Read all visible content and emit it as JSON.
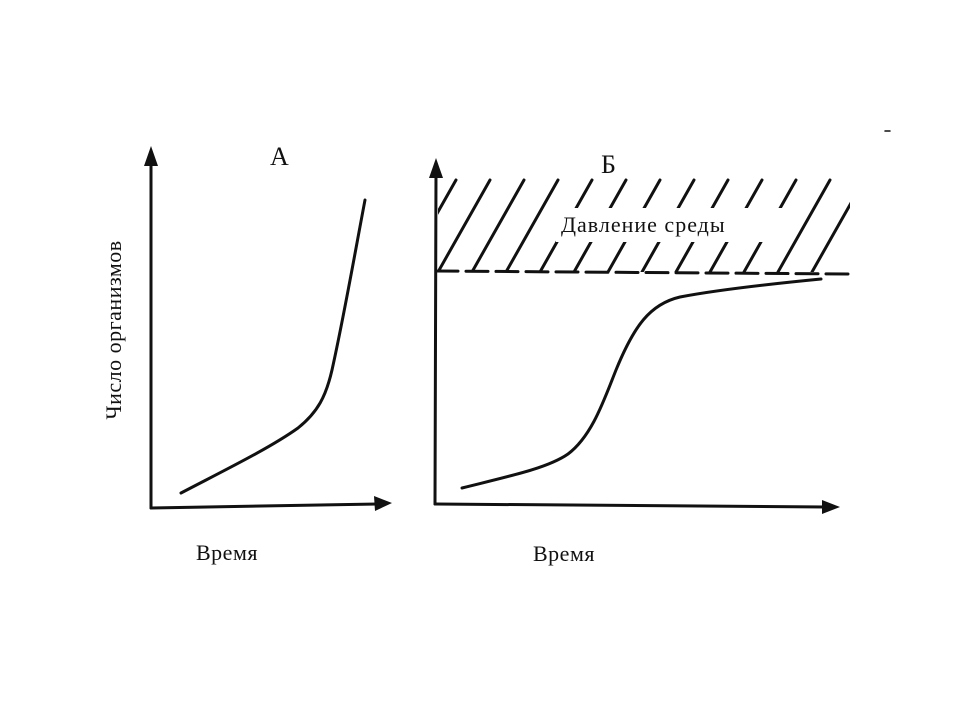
{
  "panels": [
    {
      "letter": "А",
      "x_label": "Время",
      "curve": "J-shaped exponential growth"
    },
    {
      "letter": "Б",
      "x_label": "Время",
      "curve": "S-shaped logistic growth",
      "zone_label": "Давление среды"
    }
  ],
  "y_label": "Число организмов"
}
